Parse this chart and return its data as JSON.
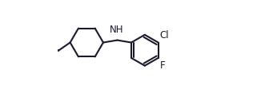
{
  "bg_color": "#ffffff",
  "bond_color": "#1a1a2e",
  "bond_lw": 1.5,
  "label_color": "#1a1a2e",
  "label_fs": 8.5,
  "figsize": [
    3.26,
    1.07
  ],
  "dpi": 100,
  "xlim": [
    -1.0,
    6.5
  ],
  "ylim": [
    -2.2,
    2.2
  ]
}
